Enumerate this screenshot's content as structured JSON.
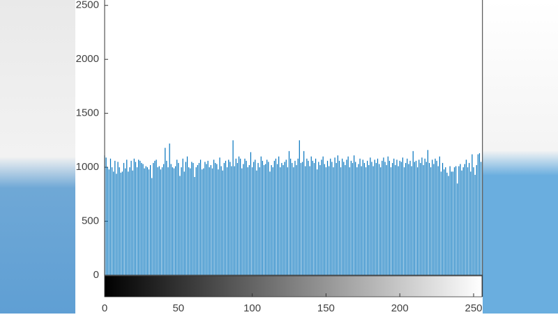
{
  "chart_data": {
    "type": "bar",
    "color": "#0072bd",
    "xlim": [
      0,
      256
    ],
    "ylim": [
      0,
      2550
    ],
    "xticks": [
      0,
      50,
      100,
      150,
      200,
      250
    ],
    "yticks": [
      0,
      500,
      1000,
      1500,
      2000,
      2500
    ],
    "x": [
      0,
      1,
      2,
      3,
      4,
      5,
      6,
      7,
      8,
      9,
      10,
      11,
      12,
      13,
      14,
      15,
      16,
      17,
      18,
      19,
      20,
      21,
      22,
      23,
      24,
      25,
      26,
      27,
      28,
      29,
      30,
      31,
      32,
      33,
      34,
      35,
      36,
      37,
      38,
      39,
      40,
      41,
      42,
      43,
      44,
      45,
      46,
      47,
      48,
      49,
      50,
      51,
      52,
      53,
      54,
      55,
      56,
      57,
      58,
      59,
      60,
      61,
      62,
      63,
      64,
      65,
      66,
      67,
      68,
      69,
      70,
      71,
      72,
      73,
      74,
      75,
      76,
      77,
      78,
      79,
      80,
      81,
      82,
      83,
      84,
      85,
      86,
      87,
      88,
      89,
      90,
      91,
      92,
      93,
      94,
      95,
      96,
      97,
      98,
      99,
      100,
      101,
      102,
      103,
      104,
      105,
      106,
      107,
      108,
      109,
      110,
      111,
      112,
      113,
      114,
      115,
      116,
      117,
      118,
      119,
      120,
      121,
      122,
      123,
      124,
      125,
      126,
      127,
      128,
      129,
      130,
      131,
      132,
      133,
      134,
      135,
      136,
      137,
      138,
      139,
      140,
      141,
      142,
      143,
      144,
      145,
      146,
      147,
      148,
      149,
      150,
      151,
      152,
      153,
      154,
      155,
      156,
      157,
      158,
      159,
      160,
      161,
      162,
      163,
      164,
      165,
      166,
      167,
      168,
      169,
      170,
      171,
      172,
      173,
      174,
      175,
      176,
      177,
      178,
      179,
      180,
      181,
      182,
      183,
      184,
      185,
      186,
      187,
      188,
      189,
      190,
      191,
      192,
      193,
      194,
      195,
      196,
      197,
      198,
      199,
      200,
      201,
      202,
      203,
      204,
      205,
      206,
      207,
      208,
      209,
      210,
      211,
      212,
      213,
      214,
      215,
      216,
      217,
      218,
      219,
      220,
      221,
      222,
      223,
      224,
      225,
      226,
      227,
      228,
      229,
      230,
      231,
      232,
      233,
      234,
      235,
      236,
      237,
      238,
      239,
      240,
      241,
      242,
      243,
      244,
      245,
      246,
      247,
      248,
      249,
      250,
      251,
      252,
      253,
      254,
      255
    ],
    "values": [
      1110,
      1090,
      1000,
      980,
      1080,
      1000,
      960,
      1060,
      940,
      1050,
      1000,
      950,
      960,
      1040,
      990,
      1070,
      960,
      1000,
      1060,
      970,
      1080,
      1050,
      1000,
      1070,
      1060,
      1040,
      1030,
      990,
      1010,
      1000,
      980,
      1020,
      900,
      1040,
      1060,
      1070,
      1000,
      1010,
      980,
      1000,
      1030,
      1180,
      1060,
      1000,
      1220,
      1030,
      1000,
      990,
      1010,
      1070,
      1040,
      920,
      1000,
      1080,
      960,
      1050,
      1100,
      1000,
      990,
      1050,
      1040,
      910,
      1000,
      1020,
      1040,
      1070,
      980,
      990,
      1050,
      1030,
      1060,
      1000,
      1020,
      990,
      1070,
      1040,
      1030,
      980,
      1090,
      1010,
      970,
      1040,
      1060,
      1000,
      1070,
      1050,
      1010,
      1250,
      1010,
      1080,
      1040,
      1100,
      1080,
      990,
      1030,
      1080,
      1060,
      1000,
      1020,
      1140,
      1000,
      1050,
      1070,
      970,
      1040,
      1000,
      1100,
      1060,
      1020,
      1030,
      1070,
      1050,
      960,
      1020,
      1000,
      1060,
      1080,
      1030,
      1100,
      1000,
      1040,
      1020,
      1050,
      1070,
      1000,
      1150,
      1080,
      1040,
      1000,
      1060,
      1020,
      1080,
      1250,
      1040,
      1050,
      1150,
      1010,
      1080,
      1060,
      1010,
      1100,
      1060,
      1040,
      1080,
      980,
      1050,
      1020,
      1070,
      1100,
      1030,
      1000,
      1060,
      1010,
      1080,
      1050,
      1000,
      1090,
      1040,
      1110,
      1060,
      1000,
      1080,
      1050,
      1020,
      1070,
      1100,
      1000,
      1060,
      1040,
      1110,
      1050,
      1000,
      1030,
      1080,
      1010,
      1070,
      1040,
      1000,
      1060,
      1020,
      1090,
      1050,
      1010,
      1070,
      1040,
      1080,
      1030,
      1000,
      1060,
      1090,
      1050,
      1020,
      1100,
      1060,
      1000,
      1040,
      1080,
      1020,
      1070,
      1010,
      1060,
      1050,
      1090,
      1000,
      1040,
      1080,
      1030,
      1060,
      1010,
      1150,
      1050,
      1060,
      1000,
      1070,
      1040,
      1090,
      1020,
      1080,
      1050,
      1160,
      1040,
      1000,
      1070,
      1030,
      1080,
      1060,
      1010,
      1100,
      960,
      1040,
      980,
      1000,
      950,
      920,
      1010,
      960,
      960,
      1000,
      1010,
      850,
      1010,
      1030,
      970,
      1000,
      1030,
      1070,
      1000,
      1040,
      960,
      1120,
      1000,
      930,
      1020,
      1120,
      1130,
      1050
    ]
  }
}
